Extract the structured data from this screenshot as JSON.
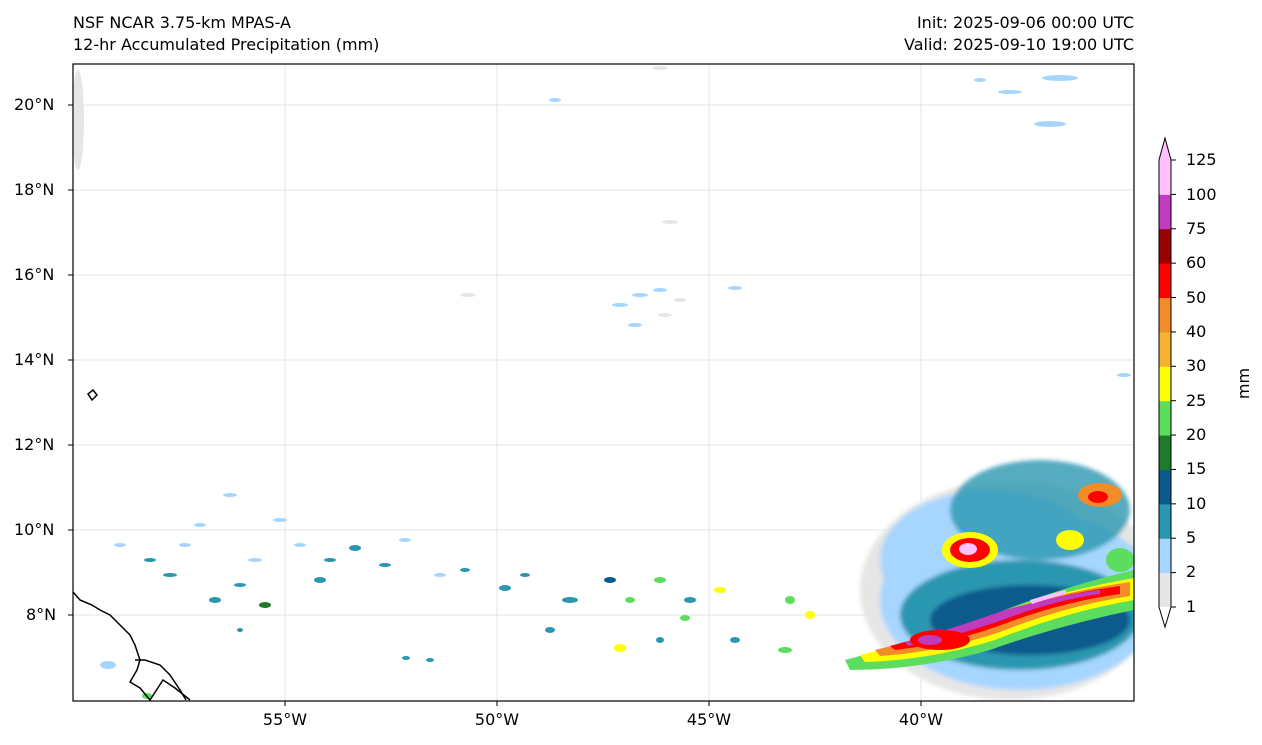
{
  "header": {
    "model": "NSF NCAR 3.75-km MPAS-A",
    "field": "12-hr Accumulated Precipitation (mm)",
    "init": "Init: 2025-09-06 00:00 UTC",
    "valid": "Valid: 2025-09-10 19:00 UTC"
  },
  "axes": {
    "lat_labels": [
      "20°N",
      "18°N",
      "16°N",
      "14°N",
      "12°N",
      "10°N",
      "8°N"
    ],
    "lon_labels": [
      "55°W",
      "50°W",
      "45°W",
      "40°W"
    ]
  },
  "colorbar": {
    "unit": "mm",
    "ticks": [
      "125",
      "100",
      "75",
      "60",
      "50",
      "40",
      "30",
      "25",
      "20",
      "15",
      "10",
      "5",
      "2",
      "1"
    ],
    "colors": [
      "#e6e6e6",
      "#a6d6ff",
      "#2a97b0",
      "#0a5a8c",
      "#1f7a2a",
      "#5ddd5d",
      "#ffff00",
      "#f7b233",
      "#f28c28",
      "#ff0000",
      "#9a0000",
      "#c13bc1",
      "#ffc0ff"
    ]
  }
}
